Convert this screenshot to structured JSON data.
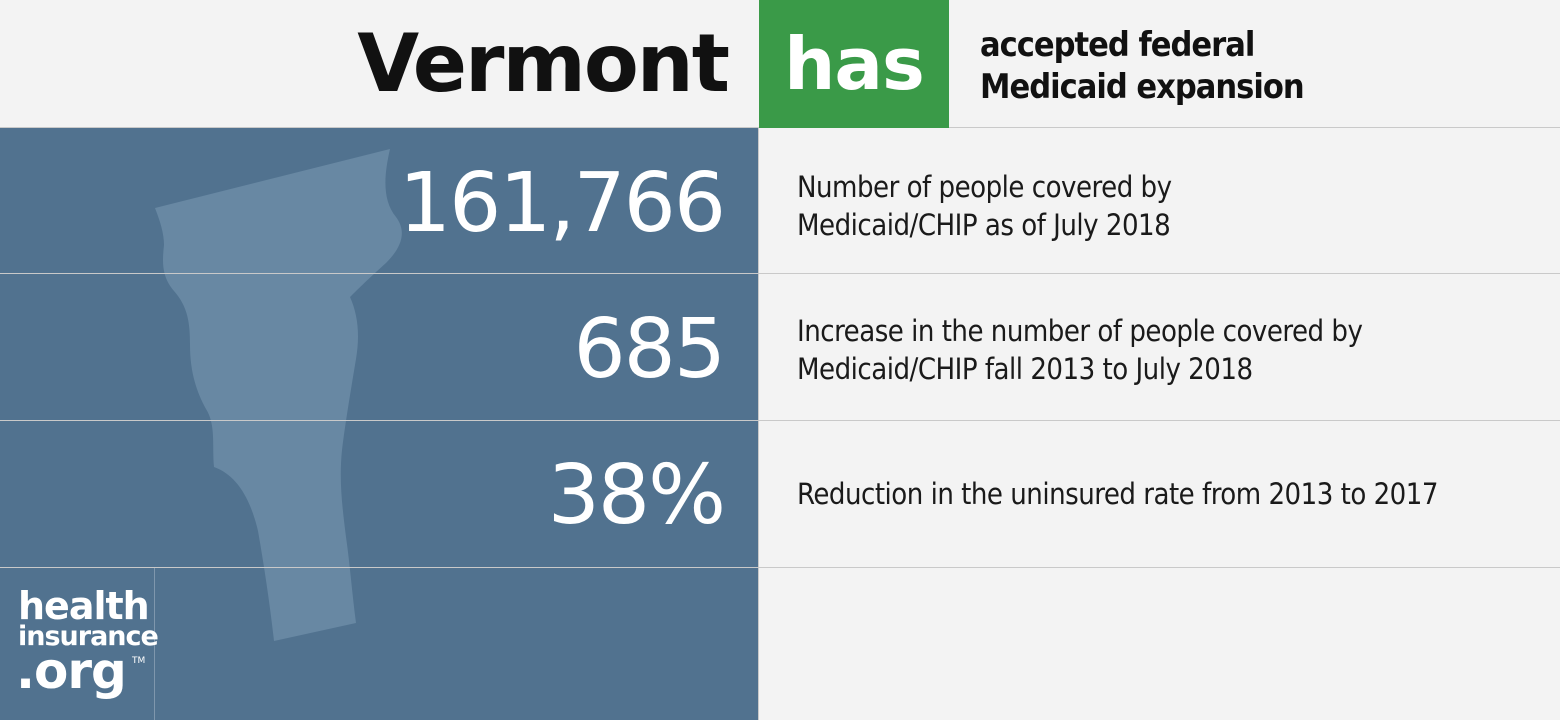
{
  "header": {
    "state": "Vermont",
    "status_word": "has",
    "status_description_line1": "accepted federal",
    "status_description_line2": "Medicaid expansion",
    "status_color": "#3a9a48"
  },
  "stats": [
    {
      "value": "161,766",
      "label_line1": "Number of people covered by",
      "label_line2": "Medicaid/CHIP as of July 2018"
    },
    {
      "value": "685",
      "label_line1": "Increase in the number of people covered by",
      "label_line2": "Medicaid/CHIP fall 2013 to July 2018"
    },
    {
      "value": "38%",
      "label_line1": "Reduction in the uninsured rate from 2013 to 2017",
      "label_line2": ""
    }
  ],
  "logo": {
    "line1": "health",
    "line2": "insurance",
    "line3": ".org",
    "tm": "TM"
  },
  "colors": {
    "panel": "#51728f",
    "state_shape": "#6888a3",
    "background": "#f3f3f3"
  }
}
